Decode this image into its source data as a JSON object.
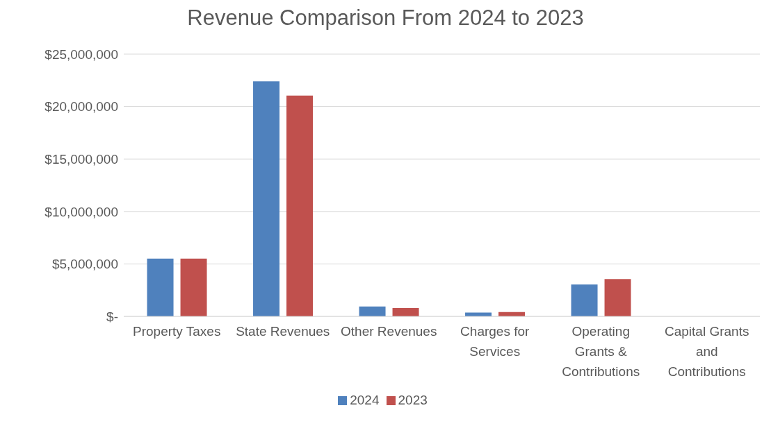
{
  "chart_data": {
    "type": "bar",
    "title": "Revenue Comparison From 2024 to 2023",
    "categories": [
      "Property Taxes",
      "State Revenues",
      "Other Revenues",
      "Charges for Services",
      "Operating Grants & Contributions",
      "Capital Grants and Contributions"
    ],
    "series": [
      {
        "name": "2024",
        "color": "#4f81bd",
        "values": [
          5500000,
          22400000,
          950000,
          370000,
          3050000,
          0
        ]
      },
      {
        "name": "2023",
        "color": "#c0504d",
        "values": [
          5500000,
          21050000,
          800000,
          420000,
          3550000,
          0
        ]
      }
    ],
    "ylim": [
      0,
      25000000
    ],
    "yticks": [
      {
        "value": 0,
        "label": "$-"
      },
      {
        "value": 5000000,
        "label": "$5,000,000"
      },
      {
        "value": 10000000,
        "label": "$10,000,000"
      },
      {
        "value": 15000000,
        "label": "$15,000,000"
      },
      {
        "value": 20000000,
        "label": "$20,000,000"
      },
      {
        "value": 25000000,
        "label": "$25,000,000"
      }
    ],
    "grid": "y",
    "legend": "bottom"
  }
}
